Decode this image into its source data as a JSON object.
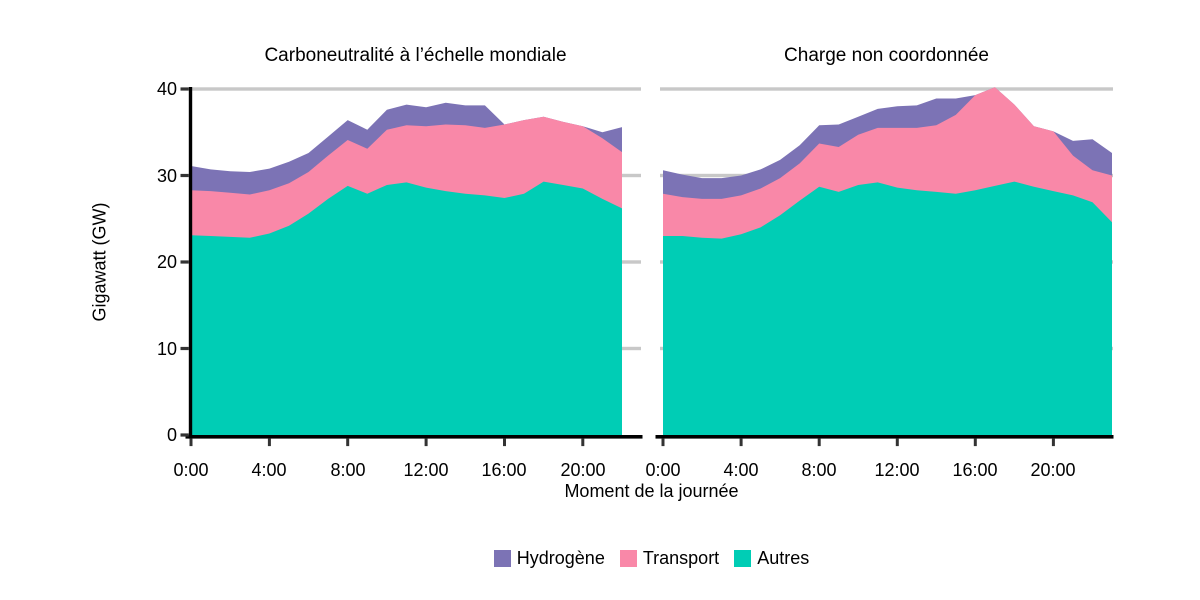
{
  "colors": {
    "hydrogene": "#7C73B5",
    "transport": "#F988A8",
    "autres": "#00CDB5",
    "gridline": "#C8C8C8",
    "axis_line": "#000000",
    "tick_mark": "#333333",
    "background": "#FFFFFF"
  },
  "y_axis": {
    "title": "Gigawatt (GW)",
    "tick_labels": [
      "0",
      "10",
      "20",
      "30",
      "40"
    ],
    "tick_values": [
      0,
      10,
      20,
      30,
      40
    ]
  },
  "x_axis": {
    "title": "Moment de la journée",
    "tick_labels": [
      "0:00",
      "4:00",
      "8:00",
      "12:00",
      "16:00",
      "20:00"
    ],
    "tick_hours": [
      0,
      4,
      8,
      12,
      16,
      20
    ]
  },
  "legend": {
    "items": [
      {
        "label": "Hydrogène",
        "color": "#7C73B5"
      },
      {
        "label": "Transport",
        "color": "#F988A8"
      },
      {
        "label": "Autres",
        "color": "#00CDB5"
      }
    ]
  },
  "chart_data": [
    {
      "type": "area",
      "stacked": true,
      "title": "Carboneutralité à l’échelle mondiale",
      "xlabel": "Moment de la journée",
      "ylabel": "Gigawatt (GW)",
      "ylim": [
        0,
        40
      ],
      "grid": "horizontal",
      "legend_position": "bottom",
      "x_hours": [
        0,
        1,
        2,
        3,
        4,
        5,
        6,
        7,
        8,
        9,
        10,
        11,
        12,
        13,
        14,
        15,
        16,
        17,
        18,
        19,
        20,
        21,
        22
      ],
      "series": [
        {
          "name": "Autres",
          "color": "#00CDB5",
          "values": [
            23.1,
            23.0,
            22.9,
            22.8,
            23.3,
            24.2,
            25.6,
            27.3,
            28.8,
            27.9,
            28.9,
            29.2,
            28.6,
            28.2,
            27.9,
            27.7,
            27.4,
            27.9,
            29.3,
            28.9,
            28.5,
            27.3,
            26.2
          ]
        },
        {
          "name": "Transport",
          "color": "#F988A8",
          "values": [
            5.2,
            5.2,
            5.1,
            5.0,
            5.0,
            4.9,
            4.8,
            5.0,
            5.3,
            5.2,
            6.4,
            6.6,
            7.1,
            7.7,
            7.9,
            7.8,
            8.5,
            8.5,
            7.5,
            7.3,
            7.2,
            7.0,
            6.5
          ]
        },
        {
          "name": "Hydrogène",
          "color": "#7C73B5",
          "values": [
            2.8,
            2.5,
            2.5,
            2.6,
            2.5,
            2.5,
            2.2,
            2.2,
            2.3,
            2.2,
            2.3,
            2.4,
            2.2,
            2.5,
            2.3,
            2.6,
            0,
            0,
            0,
            0,
            0,
            0.7,
            2.9
          ]
        }
      ]
    },
    {
      "type": "area",
      "stacked": true,
      "title": "Charge non coordonnée",
      "xlabel": "Moment de la journée",
      "ylabel": "Gigawatt (GW)",
      "ylim": [
        0,
        40
      ],
      "grid": "horizontal",
      "legend_position": "bottom",
      "x_hours": [
        0,
        1,
        2,
        3,
        4,
        5,
        6,
        7,
        8,
        9,
        10,
        11,
        12,
        13,
        14,
        15,
        16,
        17,
        18,
        19,
        20,
        21,
        22,
        23
      ],
      "series": [
        {
          "name": "Autres",
          "color": "#00CDB5",
          "values": [
            23.0,
            23.0,
            22.8,
            22.7,
            23.2,
            24.0,
            25.4,
            27.1,
            28.7,
            28.1,
            28.9,
            29.2,
            28.6,
            28.3,
            28.1,
            27.9,
            28.3,
            28.8,
            29.3,
            28.7,
            28.2,
            27.7,
            26.9,
            24.6
          ]
        },
        {
          "name": "Transport",
          "color": "#F988A8",
          "values": [
            4.9,
            4.5,
            4.5,
            4.6,
            4.5,
            4.5,
            4.3,
            4.3,
            5.0,
            5.2,
            5.8,
            6.3,
            6.9,
            7.2,
            7.7,
            9.1,
            11.0,
            11.4,
            8.9,
            7.0,
            6.9,
            4.6,
            3.7,
            5.4
          ]
        },
        {
          "name": "Hydrogène",
          "color": "#7C73B5",
          "values": [
            2.7,
            2.6,
            2.4,
            2.4,
            2.3,
            2.2,
            2.1,
            2.1,
            2.1,
            2.6,
            2.1,
            2.2,
            2.5,
            2.6,
            3.1,
            1.9,
            0,
            0,
            0,
            0,
            0,
            1.7,
            3.6,
            2.6
          ]
        }
      ]
    }
  ]
}
